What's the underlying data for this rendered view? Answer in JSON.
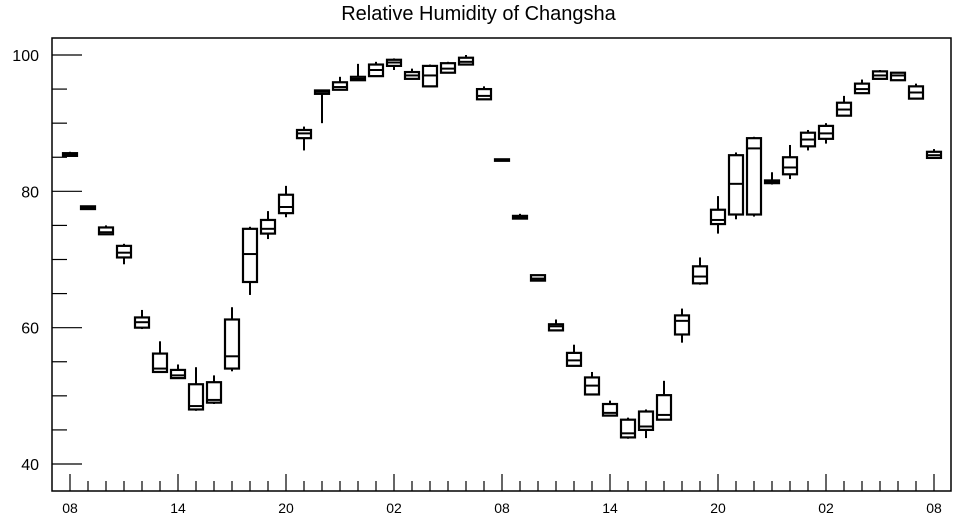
{
  "chart_data": {
    "type": "box",
    "title": "Relative Humidity of Changsha",
    "xlabel": "",
    "ylabel": "",
    "ylim": [
      36.5,
      102
    ],
    "x_tick_labels": [
      "08",
      "14",
      "20",
      "02",
      "08",
      "14",
      "20",
      "02",
      "08"
    ],
    "y_tick_labels": [
      "40",
      "60",
      "80",
      "100"
    ],
    "y_tick_values": [
      40,
      60,
      80,
      100
    ],
    "boxes": [
      {
        "x": 0,
        "whisker_low": 85.1,
        "q1": 85.2,
        "median": 85.4,
        "q3": 85.6,
        "whisker_high": 85.8
      },
      {
        "x": 1,
        "whisker_low": 77.3,
        "q1": 77.4,
        "median": 77.6,
        "q3": 77.8,
        "whisker_high": 77.9
      },
      {
        "x": 2,
        "whisker_low": 73.6,
        "q1": 73.7,
        "median": 74.0,
        "q3": 74.7,
        "whisker_high": 75.0
      },
      {
        "x": 3,
        "whisker_low": 69.3,
        "q1": 70.3,
        "median": 71.0,
        "q3": 72.0,
        "whisker_high": 72.3
      },
      {
        "x": 4,
        "whisker_low": 59.8,
        "q1": 60.0,
        "median": 60.8,
        "q3": 61.5,
        "whisker_high": 62.6
      },
      {
        "x": 5,
        "whisker_low": 53.4,
        "q1": 53.5,
        "median": 54.0,
        "q3": 56.2,
        "whisker_high": 58.0
      },
      {
        "x": 6,
        "whisker_low": 52.5,
        "q1": 52.6,
        "median": 53.0,
        "q3": 53.8,
        "whisker_high": 54.6
      },
      {
        "x": 7,
        "whisker_low": 47.8,
        "q1": 48.0,
        "median": 48.5,
        "q3": 51.7,
        "whisker_high": 54.2
      },
      {
        "x": 8,
        "whisker_low": 48.8,
        "q1": 49.0,
        "median": 49.4,
        "q3": 52.0,
        "whisker_high": 53.0
      },
      {
        "x": 9,
        "whisker_low": 53.6,
        "q1": 54.0,
        "median": 55.8,
        "q3": 61.2,
        "whisker_high": 63.0
      },
      {
        "x": 10,
        "whisker_low": 64.8,
        "q1": 66.7,
        "median": 70.8,
        "q3": 74.5,
        "whisker_high": 74.8
      },
      {
        "x": 11,
        "whisker_low": 73.0,
        "q1": 73.8,
        "median": 74.5,
        "q3": 75.8,
        "whisker_high": 77.1
      },
      {
        "x": 12,
        "whisker_low": 76.2,
        "q1": 76.8,
        "median": 77.7,
        "q3": 79.5,
        "whisker_high": 80.8
      },
      {
        "x": 13,
        "whisker_low": 86.0,
        "q1": 87.8,
        "median": 88.5,
        "q3": 89.0,
        "whisker_high": 89.5
      },
      {
        "x": 14,
        "whisker_low": 90.0,
        "q1": 94.3,
        "median": 94.6,
        "q3": 94.8,
        "whisker_high": 94.9
      },
      {
        "x": 15,
        "whisker_low": 94.8,
        "q1": 94.9,
        "median": 95.3,
        "q3": 96.0,
        "whisker_high": 96.8
      },
      {
        "x": 16,
        "whisker_low": 96.2,
        "q1": 96.3,
        "median": 96.5,
        "q3": 96.8,
        "whisker_high": 98.7
      },
      {
        "x": 17,
        "whisker_low": 96.8,
        "q1": 96.9,
        "median": 97.8,
        "q3": 98.6,
        "whisker_high": 99.0
      },
      {
        "x": 18,
        "whisker_low": 97.8,
        "q1": 98.4,
        "median": 98.9,
        "q3": 99.3,
        "whisker_high": 99.5
      },
      {
        "x": 19,
        "whisker_low": 96.4,
        "q1": 96.5,
        "median": 97.0,
        "q3": 97.5,
        "whisker_high": 98.0
      },
      {
        "x": 20,
        "whisker_low": 95.3,
        "q1": 95.4,
        "median": 97.0,
        "q3": 98.4,
        "whisker_high": 98.6
      },
      {
        "x": 21,
        "whisker_low": 97.3,
        "q1": 97.4,
        "median": 98.0,
        "q3": 98.8,
        "whisker_high": 99.0
      },
      {
        "x": 22,
        "whisker_low": 98.5,
        "q1": 98.6,
        "median": 99.0,
        "q3": 99.6,
        "whisker_high": 100.0
      },
      {
        "x": 23,
        "whisker_low": 93.4,
        "q1": 93.5,
        "median": 94.0,
        "q3": 95.0,
        "whisker_high": 95.4
      },
      {
        "x": 24,
        "whisker_low": 84.4,
        "q1": 84.5,
        "median": 84.6,
        "q3": 84.7,
        "whisker_high": 84.8
      },
      {
        "x": 25,
        "whisker_low": 75.9,
        "q1": 76.0,
        "median": 76.2,
        "q3": 76.4,
        "whisker_high": 76.7
      },
      {
        "x": 26,
        "whisker_low": 66.8,
        "q1": 66.9,
        "median": 67.2,
        "q3": 67.7,
        "whisker_high": 67.8
      },
      {
        "x": 27,
        "whisker_low": 59.5,
        "q1": 59.6,
        "median": 60.2,
        "q3": 60.5,
        "whisker_high": 61.2
      },
      {
        "x": 28,
        "whisker_low": 54.3,
        "q1": 54.4,
        "median": 55.2,
        "q3": 56.3,
        "whisker_high": 57.5
      },
      {
        "x": 29,
        "whisker_low": 50.1,
        "q1": 50.2,
        "median": 51.5,
        "q3": 52.7,
        "whisker_high": 53.5
      },
      {
        "x": 30,
        "whisker_low": 47.0,
        "q1": 47.1,
        "median": 47.5,
        "q3": 48.8,
        "whisker_high": 49.3
      },
      {
        "x": 31,
        "whisker_low": 43.7,
        "q1": 43.9,
        "median": 44.5,
        "q3": 46.5,
        "whisker_high": 46.8
      },
      {
        "x": 32,
        "whisker_low": 43.8,
        "q1": 45.0,
        "median": 45.5,
        "q3": 47.7,
        "whisker_high": 48.0
      },
      {
        "x": 33,
        "whisker_low": 46.4,
        "q1": 46.5,
        "median": 47.2,
        "q3": 50.1,
        "whisker_high": 52.2
      },
      {
        "x": 34,
        "whisker_low": 57.8,
        "q1": 59.0,
        "median": 61.0,
        "q3": 61.8,
        "whisker_high": 62.8
      },
      {
        "x": 35,
        "whisker_low": 66.3,
        "q1": 66.5,
        "median": 67.5,
        "q3": 69.0,
        "whisker_high": 70.3
      },
      {
        "x": 36,
        "whisker_low": 73.8,
        "q1": 75.2,
        "median": 75.8,
        "q3": 77.3,
        "whisker_high": 79.3
      },
      {
        "x": 37,
        "whisker_low": 75.9,
        "q1": 76.6,
        "median": 81.1,
        "q3": 85.3,
        "whisker_high": 85.7
      },
      {
        "x": 38,
        "whisker_low": 76.3,
        "q1": 76.6,
        "median": 86.3,
        "q3": 87.8,
        "whisker_high": 88.0
      },
      {
        "x": 39,
        "whisker_low": 81.0,
        "q1": 81.2,
        "median": 81.4,
        "q3": 81.6,
        "whisker_high": 82.8
      },
      {
        "x": 40,
        "whisker_low": 81.8,
        "q1": 82.5,
        "median": 83.5,
        "q3": 85.0,
        "whisker_high": 86.8
      },
      {
        "x": 41,
        "whisker_low": 86.0,
        "q1": 86.6,
        "median": 87.6,
        "q3": 88.6,
        "whisker_high": 89.0
      },
      {
        "x": 42,
        "whisker_low": 87.0,
        "q1": 87.7,
        "median": 88.5,
        "q3": 89.6,
        "whisker_high": 90.0
      },
      {
        "x": 43,
        "whisker_low": 91.0,
        "q1": 91.1,
        "median": 92.0,
        "q3": 93.0,
        "whisker_high": 94.0
      },
      {
        "x": 44,
        "whisker_low": 94.3,
        "q1": 94.4,
        "median": 95.0,
        "q3": 95.8,
        "whisker_high": 96.4
      },
      {
        "x": 45,
        "whisker_low": 96.4,
        "q1": 96.5,
        "median": 97.0,
        "q3": 97.6,
        "whisker_high": 97.8
      },
      {
        "x": 46,
        "whisker_low": 96.2,
        "q1": 96.3,
        "median": 97.0,
        "q3": 97.4,
        "whisker_high": 97.5
      },
      {
        "x": 47,
        "whisker_low": 93.5,
        "q1": 93.6,
        "median": 94.5,
        "q3": 95.4,
        "whisker_high": 95.8
      },
      {
        "x": 48,
        "whisker_low": 84.8,
        "q1": 84.9,
        "median": 85.3,
        "q3": 85.8,
        "whisker_high": 86.2
      }
    ],
    "grid": false,
    "legend": "none",
    "colors": {
      "line": "#000000",
      "background": "#ffffff"
    }
  }
}
